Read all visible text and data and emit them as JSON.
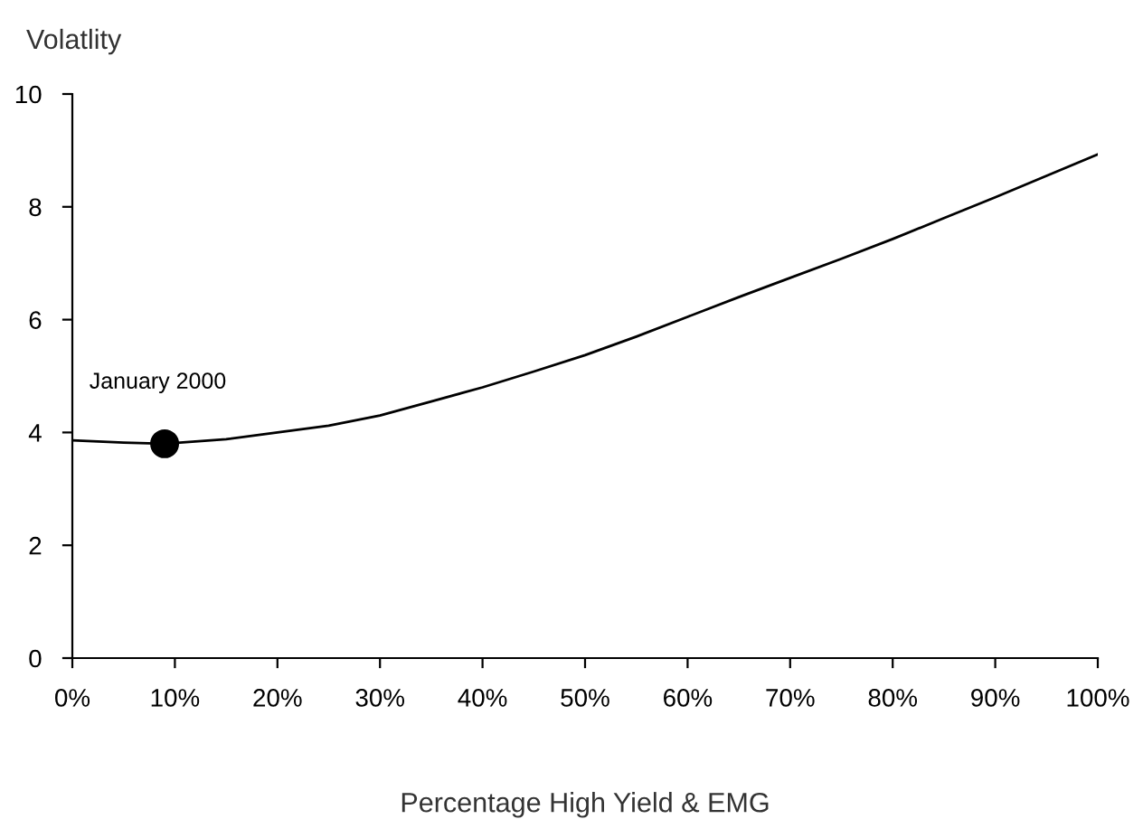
{
  "chart_data": {
    "type": "line",
    "xlabel": "Percentage High Yield & EMG",
    "ylabel": "Volatlity",
    "x": [
      0,
      5,
      9,
      15,
      20,
      25,
      30,
      35,
      40,
      45,
      50,
      55,
      60,
      65,
      70,
      75,
      80,
      85,
      90,
      95,
      100
    ],
    "series": [
      {
        "color": "#000000",
        "values": [
          3.86,
          3.82,
          3.8,
          3.88,
          4.0,
          4.12,
          4.3,
          4.55,
          4.8,
          5.08,
          5.37,
          5.7,
          6.05,
          6.4,
          6.74,
          7.08,
          7.43,
          7.8,
          8.17,
          8.55,
          8.93
        ]
      },
      {
        "type": "scatter",
        "color": "#000000",
        "marker": "circle",
        "x": [
          9
        ],
        "values": [
          3.8
        ]
      }
    ],
    "annotations": [
      {
        "text": "January 2000",
        "x": 9,
        "y": 3.8
      }
    ],
    "xlim": [
      0,
      100
    ],
    "xticks": [
      {
        "value": 0,
        "label": "0%"
      },
      {
        "value": 10,
        "label": "10%"
      },
      {
        "value": 20,
        "label": "20%"
      },
      {
        "value": 30,
        "label": "30%"
      },
      {
        "value": 40,
        "label": "40%"
      },
      {
        "value": 50,
        "label": "50%"
      },
      {
        "value": 60,
        "label": "60%"
      },
      {
        "value": 70,
        "label": "70%"
      },
      {
        "value": 80,
        "label": "80%"
      },
      {
        "value": 90,
        "label": "90%"
      },
      {
        "value": 100,
        "label": "100%"
      }
    ],
    "ylim": [
      0,
      10
    ],
    "yticks": [
      0,
      2,
      4,
      6,
      8,
      10
    ],
    "grid": false,
    "legend": false
  }
}
